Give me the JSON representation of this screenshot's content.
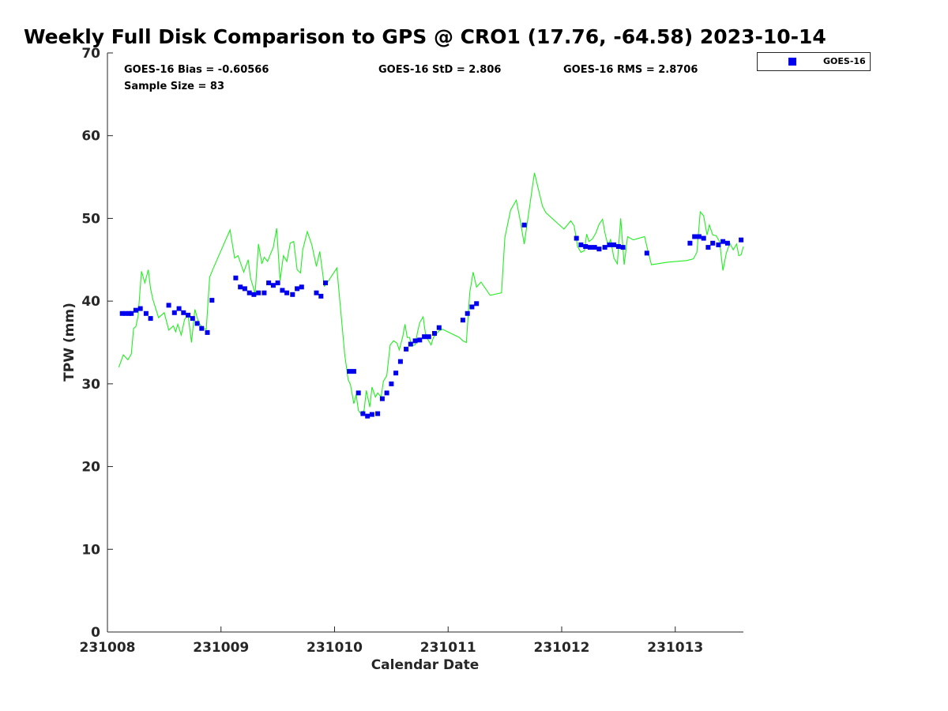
{
  "chart_data": {
    "type": "scatter",
    "title": "Weekly Full Disk Comparison to GPS @ CRO1 (17.76, -64.58) 2023-10-14",
    "xlabel": "Calendar Date",
    "ylabel": "TPW (mm)",
    "xlim": [
      231008,
      231013.6
    ],
    "ylim": [
      0,
      70
    ],
    "x_tick_labels": [
      "231008",
      "231009",
      "231010",
      "231011",
      "231012",
      "231013"
    ],
    "y_tick_labels": [
      "0",
      "10",
      "20",
      "30",
      "40",
      "50",
      "60",
      "70"
    ],
    "legend": {
      "position": "top-right-outside",
      "entries": [
        "GOES-16"
      ]
    },
    "stats": {
      "bias": "GOES-16 Bias = -0.60566",
      "std": "GOES-16 StD = 2.806",
      "rms": "GOES-16 RMS = 2.8706",
      "sample_size": "Sample Size = 83"
    },
    "grid": false,
    "colors": {
      "goes16": "#0000ee",
      "gps": "#22ee22"
    },
    "series": [
      {
        "name": "GOES-16",
        "style": "markers",
        "x": [
          231008.13,
          231008.16,
          231008.19,
          231008.21,
          231008.25,
          231008.29,
          231008.34,
          231008.38,
          231008.54,
          231008.59,
          231008.63,
          231008.67,
          231008.71,
          231008.75,
          231008.79,
          231008.83,
          231008.88,
          231008.92,
          231009.13,
          231009.17,
          231009.21,
          231009.25,
          231009.29,
          231009.33,
          231009.38,
          231009.42,
          231009.46,
          231009.5,
          231009.54,
          231009.58,
          231009.63,
          231009.67,
          231009.71,
          231009.84,
          231009.88,
          231009.92,
          231010.13,
          231010.17,
          231010.21,
          231010.25,
          231010.29,
          231010.33,
          231010.38,
          231010.42,
          231010.46,
          231010.5,
          231010.54,
          231010.58,
          231010.63,
          231010.67,
          231010.71,
          231010.75,
          231010.79,
          231010.83,
          231010.88,
          231010.92,
          231011.13,
          231011.17,
          231011.21,
          231011.25,
          231011.67,
          231012.13,
          231012.17,
          231012.21,
          231012.25,
          231012.29,
          231012.33,
          231012.38,
          231012.42,
          231012.46,
          231012.5,
          231012.54,
          231012.75,
          231013.13,
          231013.17,
          231013.21,
          231013.25,
          231013.29,
          231013.33,
          231013.38,
          231013.42,
          231013.46,
          231013.58
        ],
        "y": [
          38.5,
          38.5,
          38.5,
          38.5,
          38.9,
          39.1,
          38.5,
          37.9,
          39.5,
          38.6,
          39.1,
          38.6,
          38.3,
          37.9,
          37.3,
          36.7,
          36.2,
          40.1,
          42.8,
          41.7,
          41.5,
          41.0,
          40.8,
          41.0,
          41.0,
          42.2,
          41.9,
          42.2,
          41.3,
          41.0,
          40.8,
          41.5,
          41.7,
          41.0,
          40.6,
          42.2,
          31.5,
          31.5,
          28.9,
          26.4,
          26.1,
          26.3,
          26.4,
          28.2,
          28.9,
          30.0,
          31.3,
          32.7,
          34.2,
          34.8,
          35.2,
          35.3,
          35.7,
          35.7,
          36.1,
          36.8,
          37.7,
          38.5,
          39.3,
          39.7,
          49.2,
          47.6,
          46.8,
          46.6,
          46.5,
          46.5,
          46.3,
          46.5,
          46.8,
          46.8,
          46.6,
          46.5,
          45.8,
          47.0,
          47.8,
          47.8,
          47.6,
          46.5,
          47.0,
          46.8,
          47.2,
          47.0,
          47.4
        ]
      },
      {
        "name": "GPS",
        "style": "line",
        "x": [
          231008.1,
          231008.14,
          231008.18,
          231008.21,
          231008.23,
          231008.25,
          231008.27,
          231008.3,
          231008.33,
          231008.36,
          231008.38,
          231008.4,
          231008.45,
          231008.5,
          231008.54,
          231008.58,
          231008.6,
          231008.62,
          231008.65,
          231008.68,
          231008.71,
          231008.74,
          231008.77,
          231008.8,
          231008.84,
          231008.87,
          231008.9,
          231008.93,
          231009.0,
          231009.08,
          231009.12,
          231009.15,
          231009.2,
          231009.24,
          231009.26,
          231009.3,
          231009.33,
          231009.36,
          231009.38,
          231009.41,
          231009.43,
          231009.46,
          231009.49,
          231009.52,
          231009.55,
          231009.58,
          231009.61,
          231009.64,
          231009.67,
          231009.7,
          231009.72,
          231009.76,
          231009.8,
          231009.84,
          231009.87,
          231009.91,
          231009.93,
          231010.02,
          231010.09,
          231010.12,
          231010.14,
          231010.17,
          231010.19,
          231010.21,
          231010.23,
          231010.26,
          231010.28,
          231010.31,
          231010.33,
          231010.36,
          231010.38,
          231010.41,
          231010.43,
          231010.46,
          231010.49,
          231010.52,
          231010.55,
          231010.57,
          231010.6,
          231010.62,
          231010.64,
          231010.66,
          231010.68,
          231010.71,
          231010.73,
          231010.75,
          231010.78,
          231010.8,
          231010.82,
          231010.85,
          231010.87,
          231010.9,
          231010.92,
          231010.95,
          231011.1,
          231011.13,
          231011.16,
          231011.19,
          231011.22,
          231011.25,
          231011.29,
          231011.37,
          231011.47,
          231011.5,
          231011.55,
          231011.6,
          231011.63,
          231011.67,
          231011.76,
          231011.83,
          231011.86,
          231012.02,
          231012.08,
          231012.11,
          231012.14,
          231012.17,
          231012.2,
          231012.22,
          231012.24,
          231012.27,
          231012.3,
          231012.33,
          231012.36,
          231012.38,
          231012.41,
          231012.43,
          231012.46,
          231012.49,
          231012.52,
          231012.55,
          231012.58,
          231012.63,
          231012.73,
          231012.76,
          231012.79,
          231012.93,
          231013.1,
          231013.16,
          231013.19,
          231013.22,
          231013.25,
          231013.28,
          231013.3,
          231013.33,
          231013.36,
          231013.39,
          231013.42,
          231013.45,
          231013.48,
          231013.51,
          231013.54,
          231013.56,
          231013.58,
          231013.6
        ],
        "y": [
          32.0,
          33.5,
          32.9,
          33.6,
          36.7,
          36.9,
          38.2,
          43.6,
          42.2,
          43.8,
          41.5,
          40.2,
          38.0,
          38.6,
          36.5,
          37.0,
          36.3,
          37.2,
          35.9,
          37.8,
          38.3,
          35.0,
          39.0,
          37.5,
          36.7,
          36.6,
          42.9,
          43.9,
          46.1,
          48.6,
          45.2,
          45.5,
          43.5,
          45.0,
          42.8,
          40.9,
          46.9,
          44.5,
          45.3,
          44.8,
          45.5,
          46.5,
          48.8,
          42.5,
          45.5,
          44.8,
          47.0,
          47.2,
          43.8,
          43.4,
          46.2,
          48.4,
          46.8,
          44.2,
          46.0,
          41.8,
          42.1,
          44.0,
          33.5,
          30.5,
          29.9,
          27.6,
          28.7,
          26.8,
          26.4,
          26.8,
          29.2,
          27.2,
          29.6,
          28.4,
          28.9,
          28.4,
          30.3,
          31.0,
          34.7,
          35.2,
          34.9,
          34.1,
          35.7,
          37.2,
          35.6,
          35.6,
          34.6,
          34.7,
          36.2,
          37.4,
          38.1,
          36.1,
          35.4,
          34.7,
          35.6,
          36.1,
          36.4,
          36.6,
          35.6,
          35.2,
          35.0,
          41.0,
          43.5,
          41.7,
          42.3,
          40.7,
          41.0,
          47.7,
          51.0,
          52.2,
          50.1,
          46.9,
          55.5,
          51.5,
          50.7,
          48.7,
          49.7,
          49.1,
          46.6,
          45.9,
          46.1,
          48.1,
          47.2,
          47.5,
          48.2,
          49.3,
          49.9,
          48.3,
          46.6,
          47.5,
          45.2,
          44.5,
          50.0,
          44.4,
          47.8,
          47.4,
          47.8,
          46.0,
          44.4,
          44.7,
          44.9,
          45.1,
          45.9,
          50.8,
          50.3,
          48.0,
          49.2,
          48.0,
          47.9,
          47.2,
          43.7,
          45.8,
          47.0,
          46.2,
          46.9,
          45.5,
          45.6,
          46.6
        ]
      }
    ]
  }
}
